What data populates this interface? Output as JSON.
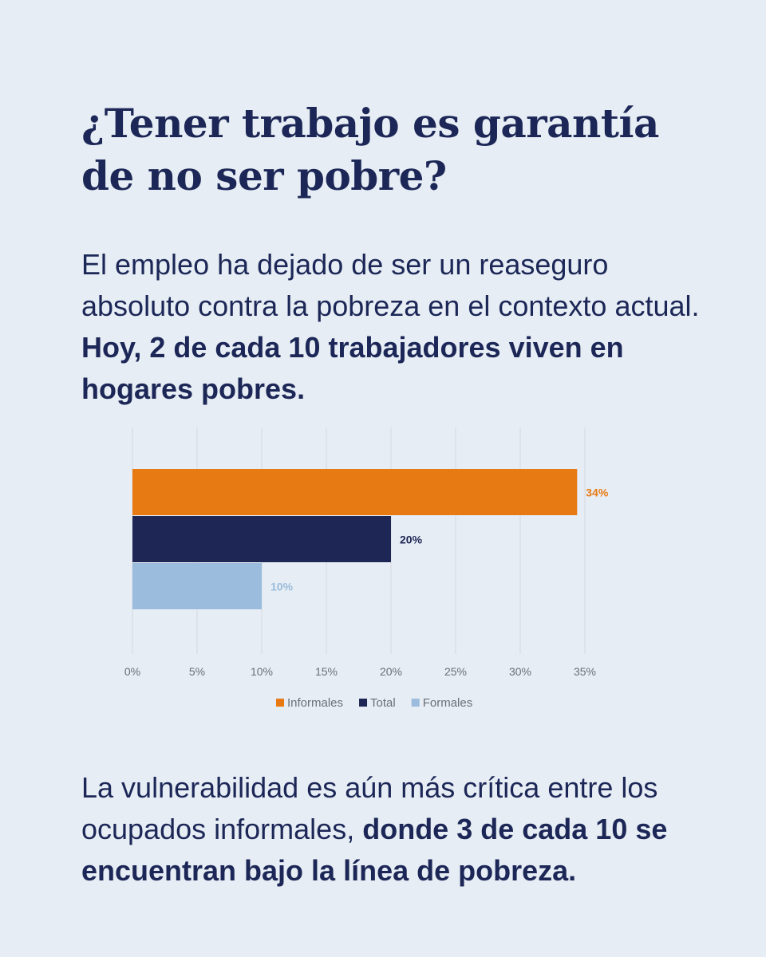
{
  "title": {
    "line1": "¿Tener trabajo es garantía",
    "line2": "de no ser pobre?"
  },
  "intro": {
    "text": "El empleo ha dejado de ser un reaseguro absoluto contra la pobreza en el contexto actual.",
    "bold": "Hoy, 2 de cada 10 trabajadores viven en hogares pobres."
  },
  "outro": {
    "text": "La vulnerabilidad es aún más crítica entre los ocupados informales,",
    "bold": "donde 3 de cada 10 se encuentran bajo la línea de pobreza."
  },
  "chart_data": {
    "type": "bar",
    "orientation": "horizontal",
    "series": [
      {
        "name": "Informales",
        "value": 34.4,
        "label": "34%",
        "color": "#e87a14"
      },
      {
        "name": "Total",
        "value": 20,
        "label": "20%",
        "color": "#1e2656"
      },
      {
        "name": "Formales",
        "value": 10,
        "label": "10%",
        "color": "#9bbcdc"
      }
    ],
    "xlim": [
      0,
      35
    ],
    "xticks": [
      "0%",
      "5%",
      "10%",
      "15%",
      "20%",
      "25%",
      "30%",
      "35%"
    ],
    "grid": true,
    "legend_position": "bottom"
  }
}
